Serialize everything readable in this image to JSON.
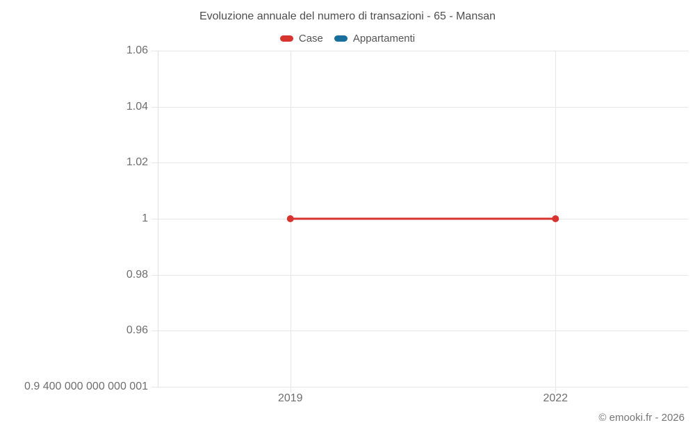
{
  "copyright": "© emooki.fr - 2026",
  "chart_data": {
    "type": "line",
    "title": "Evoluzione annuale del numero di transazioni - 65 - Mansan",
    "x": [
      2019,
      2022
    ],
    "series": [
      {
        "name": "Case",
        "color": "#d7332f",
        "values": [
          1,
          1
        ]
      },
      {
        "name": "Appartamenti",
        "color": "#1a6e9b",
        "values": []
      }
    ],
    "xlim": [
      2017.5,
      2023.5
    ],
    "ylim": [
      0.94,
      1.06
    ],
    "y_ticks": [
      {
        "value": 1.06,
        "label": "1.06"
      },
      {
        "value": 1.04,
        "label": "1.04"
      },
      {
        "value": 1.02,
        "label": "1.02"
      },
      {
        "value": 1.0,
        "label": "1"
      },
      {
        "value": 0.98,
        "label": "0.98"
      },
      {
        "value": 0.96,
        "label": "0.96"
      },
      {
        "value": 0.94,
        "label": "0.9 400 000 000 000 001"
      }
    ],
    "x_ticks": [
      {
        "value": 2019,
        "label": "2019"
      },
      {
        "value": 2022,
        "label": "2022"
      }
    ],
    "grid": true,
    "legend_position": "top",
    "colors": {
      "grid": "#e6e6e6",
      "axis": "#e0e0e0",
      "tick_text": "#6e6e6e"
    }
  }
}
